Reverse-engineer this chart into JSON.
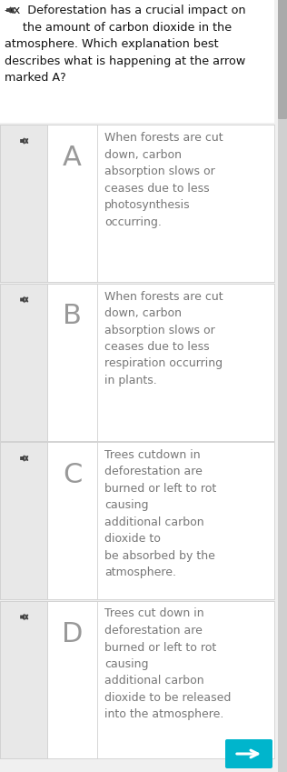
{
  "bg_color": "#f0f0f0",
  "header_bg": "#ffffff",
  "cell_bg": "#e8e8e8",
  "cell_border": "#d0d0d0",
  "header_text_color": "#111111",
  "letter_color": "#999999",
  "option_text_color": "#777777",
  "icon_color": "#444444",
  "bottom_button_color": "#00b5cc",
  "scrollbar_bg": "#d0d0d0",
  "scrollbar_thumb": "#aaaaaa",
  "question_line1": "◄x  Deforestation has a crucial impact on",
  "question_line2": "     the amount of carbon dioxide in the",
  "question_line3": "atmosphere. Which explanation best",
  "question_line4": "describes what is happening at the arrow",
  "question_line5": "marked A?",
  "options": [
    {
      "letter": "A",
      "text": "When forests are cut\ndown, carbon\nabsorption slows or\nceases due to less\nphotosynthesis\noccurring."
    },
    {
      "letter": "B",
      "text": "When forests are cut\ndown, carbon\nabsorption slows or\nceases due to less\nrespiration occurring\nin plants."
    },
    {
      "letter": "C",
      "text": "Trees cutdown in\ndeforestation are\nburned or left to rot\ncausing\nadditional carbon\ndioxide to\nbe absorbed by the\natmosphere."
    },
    {
      "letter": "D",
      "text": "Trees cut down in\ndeforestation are\nburned or left to rot\ncausing\nadditional carbon\ndioxide to be released\ninto the atmosphere."
    }
  ],
  "fig_width": 3.16,
  "fig_height": 8.49,
  "dpi": 100
}
